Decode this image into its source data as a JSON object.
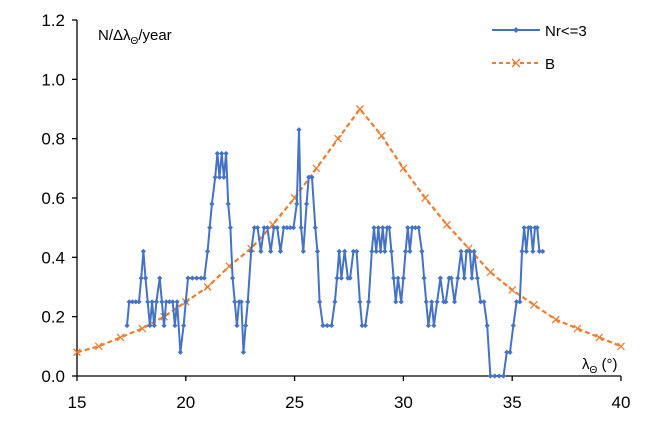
{
  "chart_data": {
    "type": "line",
    "ylabel": "N/Δλ_Θ/year",
    "ylabel_base": "N/Δλ",
    "ylabel_sub": "Θ",
    "ylabel_tail": "/year",
    "xlabel": "λ_Θ (°)",
    "xlabel_base": "λ",
    "xlabel_sub": "Θ",
    "xlabel_tail": " (°)",
    "xlim": [
      15,
      40
    ],
    "ylim": [
      0,
      1.2
    ],
    "x_ticks": [
      "15",
      "20",
      "25",
      "30",
      "35",
      "40"
    ],
    "y_ticks": [
      "0.0",
      "0.2",
      "0.4",
      "0.6",
      "0.8",
      "1.0",
      "1.2"
    ],
    "grid": false,
    "legend_position": "top-right",
    "series": [
      {
        "name": "Nr<=3",
        "color": "#4472C4",
        "marker": "diamond",
        "line": "solid",
        "points": [
          [
            17.3,
            0.17
          ],
          [
            17.4,
            0.25
          ],
          [
            17.55,
            0.25
          ],
          [
            17.7,
            0.25
          ],
          [
            17.85,
            0.25
          ],
          [
            17.95,
            0.33
          ],
          [
            18.05,
            0.42
          ],
          [
            18.15,
            0.33
          ],
          [
            18.25,
            0.25
          ],
          [
            18.35,
            0.17
          ],
          [
            18.45,
            0.25
          ],
          [
            18.55,
            0.17
          ],
          [
            18.65,
            0.25
          ],
          [
            18.8,
            0.33
          ],
          [
            18.9,
            0.25
          ],
          [
            19.0,
            0.17
          ],
          [
            19.1,
            0.25
          ],
          [
            19.25,
            0.25
          ],
          [
            19.4,
            0.25
          ],
          [
            19.5,
            0.17
          ],
          [
            19.6,
            0.25
          ],
          [
            19.75,
            0.08
          ],
          [
            19.9,
            0.17
          ],
          [
            20.0,
            0.25
          ],
          [
            20.1,
            0.33
          ],
          [
            20.3,
            0.33
          ],
          [
            20.5,
            0.33
          ],
          [
            20.7,
            0.33
          ],
          [
            20.85,
            0.33
          ],
          [
            21.0,
            0.42
          ],
          [
            21.1,
            0.5
          ],
          [
            21.2,
            0.58
          ],
          [
            21.35,
            0.67
          ],
          [
            21.45,
            0.75
          ],
          [
            21.55,
            0.67
          ],
          [
            21.65,
            0.75
          ],
          [
            21.75,
            0.67
          ],
          [
            21.85,
            0.75
          ],
          [
            21.95,
            0.58
          ],
          [
            22.05,
            0.5
          ],
          [
            22.15,
            0.33
          ],
          [
            22.25,
            0.25
          ],
          [
            22.35,
            0.17
          ],
          [
            22.45,
            0.25
          ],
          [
            22.55,
            0.25
          ],
          [
            22.65,
            0.08
          ],
          [
            22.75,
            0.17
          ],
          [
            22.85,
            0.25
          ],
          [
            23.0,
            0.42
          ],
          [
            23.15,
            0.5
          ],
          [
            23.3,
            0.5
          ],
          [
            23.45,
            0.42
          ],
          [
            23.6,
            0.5
          ],
          [
            23.75,
            0.5
          ],
          [
            23.9,
            0.42
          ],
          [
            24.05,
            0.5
          ],
          [
            24.2,
            0.5
          ],
          [
            24.35,
            0.42
          ],
          [
            24.5,
            0.5
          ],
          [
            24.65,
            0.5
          ],
          [
            24.8,
            0.5
          ],
          [
            24.95,
            0.5
          ],
          [
            25.1,
            0.58
          ],
          [
            25.2,
            0.83
          ],
          [
            25.3,
            0.5
          ],
          [
            25.4,
            0.42
          ],
          [
            25.55,
            0.58
          ],
          [
            25.65,
            0.67
          ],
          [
            25.8,
            0.67
          ],
          [
            25.95,
            0.5
          ],
          [
            26.05,
            0.42
          ],
          [
            26.15,
            0.25
          ],
          [
            26.3,
            0.17
          ],
          [
            26.5,
            0.17
          ],
          [
            26.7,
            0.17
          ],
          [
            26.85,
            0.25
          ],
          [
            26.95,
            0.33
          ],
          [
            27.05,
            0.42
          ],
          [
            27.15,
            0.33
          ],
          [
            27.3,
            0.42
          ],
          [
            27.45,
            0.33
          ],
          [
            27.55,
            0.33
          ],
          [
            27.7,
            0.42
          ],
          [
            27.85,
            0.42
          ],
          [
            28.0,
            0.25
          ],
          [
            28.1,
            0.17
          ],
          [
            28.25,
            0.17
          ],
          [
            28.4,
            0.25
          ],
          [
            28.55,
            0.42
          ],
          [
            28.65,
            0.5
          ],
          [
            28.75,
            0.42
          ],
          [
            28.85,
            0.5
          ],
          [
            28.95,
            0.42
          ],
          [
            29.05,
            0.5
          ],
          [
            29.15,
            0.42
          ],
          [
            29.25,
            0.5
          ],
          [
            29.35,
            0.5
          ],
          [
            29.45,
            0.42
          ],
          [
            29.55,
            0.33
          ],
          [
            29.65,
            0.25
          ],
          [
            29.75,
            0.33
          ],
          [
            29.9,
            0.25
          ],
          [
            30.0,
            0.33
          ],
          [
            30.1,
            0.42
          ],
          [
            30.2,
            0.5
          ],
          [
            30.3,
            0.42
          ],
          [
            30.4,
            0.5
          ],
          [
            30.55,
            0.5
          ],
          [
            30.7,
            0.5
          ],
          [
            30.85,
            0.42
          ],
          [
            30.95,
            0.33
          ],
          [
            31.05,
            0.25
          ],
          [
            31.15,
            0.17
          ],
          [
            31.3,
            0.25
          ],
          [
            31.4,
            0.17
          ],
          [
            31.55,
            0.25
          ],
          [
            31.7,
            0.33
          ],
          [
            31.85,
            0.25
          ],
          [
            31.95,
            0.25
          ],
          [
            32.1,
            0.33
          ],
          [
            32.2,
            0.33
          ],
          [
            32.35,
            0.25
          ],
          [
            32.5,
            0.33
          ],
          [
            32.65,
            0.42
          ],
          [
            32.8,
            0.33
          ],
          [
            32.9,
            0.42
          ],
          [
            33.05,
            0.42
          ],
          [
            33.15,
            0.33
          ],
          [
            33.25,
            0.42
          ],
          [
            33.4,
            0.33
          ],
          [
            33.55,
            0.25
          ],
          [
            33.7,
            0.25
          ],
          [
            33.85,
            0.17
          ],
          [
            34.0,
            0.0
          ],
          [
            34.2,
            0.0
          ],
          [
            34.4,
            0.0
          ],
          [
            34.6,
            0.0
          ],
          [
            34.75,
            0.08
          ],
          [
            34.9,
            0.08
          ],
          [
            35.05,
            0.17
          ],
          [
            35.2,
            0.25
          ],
          [
            35.35,
            0.25
          ],
          [
            35.45,
            0.42
          ],
          [
            35.55,
            0.5
          ],
          [
            35.65,
            0.42
          ],
          [
            35.75,
            0.5
          ],
          [
            35.85,
            0.5
          ],
          [
            35.95,
            0.42
          ],
          [
            36.05,
            0.5
          ],
          [
            36.15,
            0.5
          ],
          [
            36.25,
            0.42
          ],
          [
            36.4,
            0.42
          ]
        ]
      },
      {
        "name": "B",
        "color": "#ED7D31",
        "marker": "x",
        "line": "dashed",
        "points": [
          [
            15,
            0.08
          ],
          [
            16,
            0.1
          ],
          [
            17,
            0.13
          ],
          [
            18,
            0.16
          ],
          [
            19,
            0.2
          ],
          [
            20,
            0.25
          ],
          [
            21,
            0.3
          ],
          [
            22,
            0.37
          ],
          [
            23,
            0.43
          ],
          [
            24,
            0.51
          ],
          [
            25,
            0.6
          ],
          [
            26,
            0.7
          ],
          [
            27,
            0.8
          ],
          [
            28,
            0.9
          ],
          [
            29,
            0.81
          ],
          [
            30,
            0.7
          ],
          [
            31,
            0.6
          ],
          [
            32,
            0.51
          ],
          [
            33,
            0.43
          ],
          [
            34,
            0.35
          ],
          [
            35,
            0.29
          ],
          [
            36,
            0.24
          ],
          [
            37,
            0.19
          ],
          [
            38,
            0.16
          ],
          [
            39,
            0.13
          ],
          [
            40,
            0.1
          ]
        ]
      }
    ]
  }
}
